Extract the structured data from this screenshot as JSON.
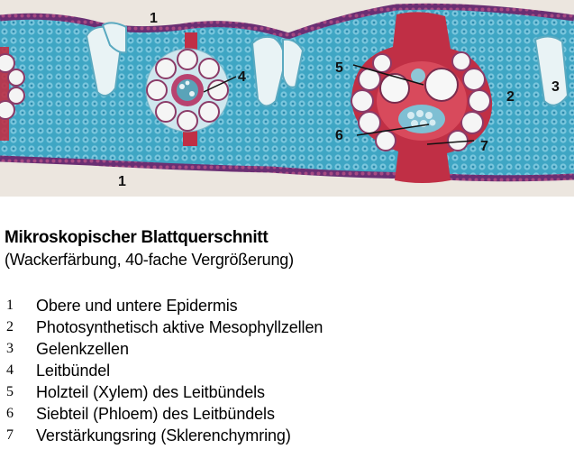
{
  "image": {
    "labels": [
      "1",
      "1",
      "2",
      "3",
      "4",
      "5",
      "6",
      "7"
    ]
  },
  "caption": {
    "title": "Mikroskopischer Blattquerschnitt",
    "subtitle": "(Wackerfärbung, 40-fache Vergrößerung)"
  },
  "legend": [
    {
      "num": "1",
      "text": "Obere und untere Epidermis"
    },
    {
      "num": "2",
      "text": "Photosynthetisch aktive Mesophyllzellen"
    },
    {
      "num": "3",
      "text": "Gelenkzellen"
    },
    {
      "num": "4",
      "text": "Leitbündel"
    },
    {
      "num": "5",
      "text": "Holzteil (Xylem) des Leitbündels"
    },
    {
      "num": "6",
      "text": "Siebteil (Phloem) des Leitbündels"
    },
    {
      "num": "7",
      "text": "Verstärkungsring (Sklerenchymring)"
    }
  ]
}
